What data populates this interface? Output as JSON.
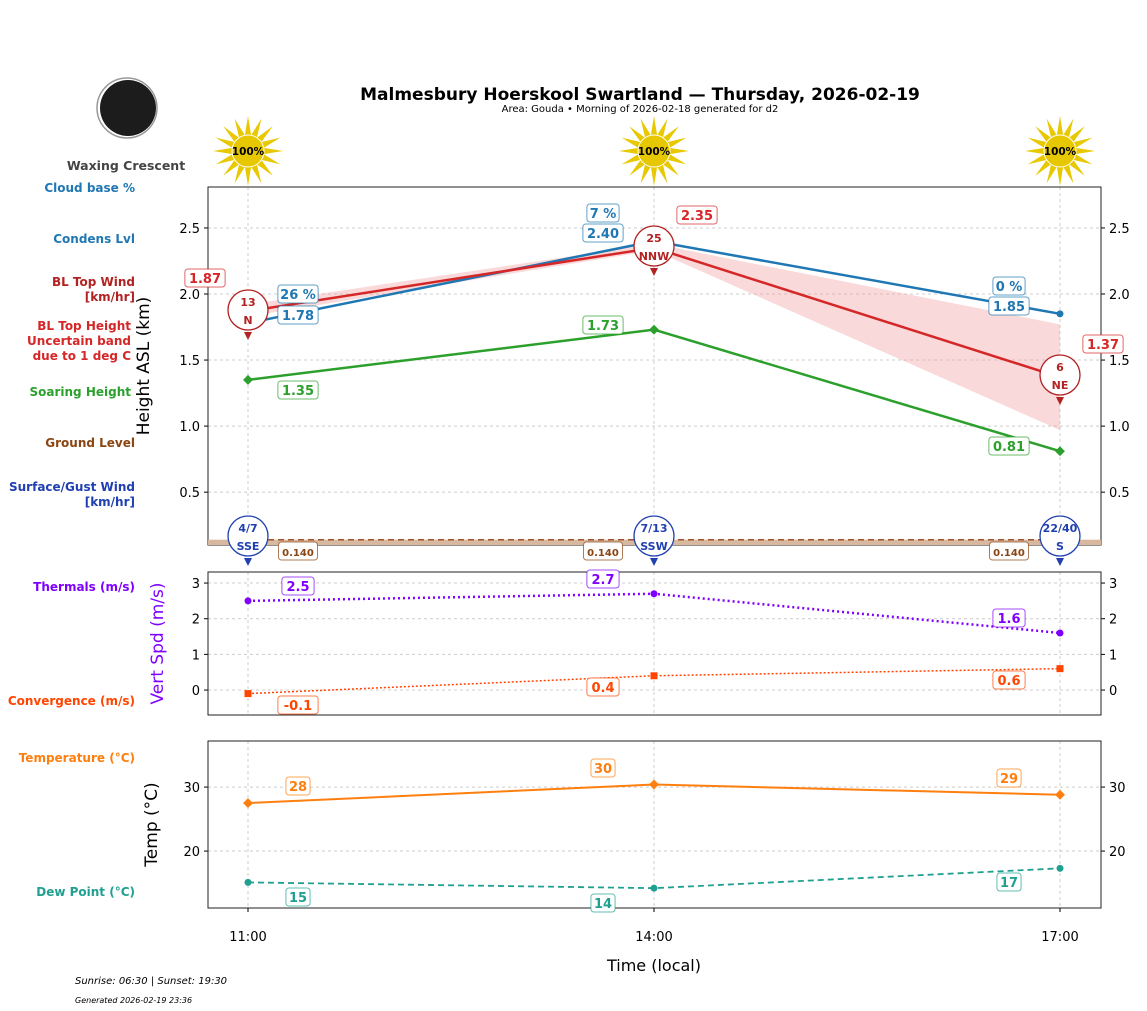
{
  "header": {
    "title": "Malmesbury Hoerskool Swartland — Thursday, 2026-02-19",
    "subtitle": "Area: Gouda • Morning of 2026-02-18 generated for d2",
    "moon_phase": "Waxing Crescent",
    "sun_labels": [
      "100%",
      "100%",
      "100%"
    ]
  },
  "legend": {
    "cloud_base": "Cloud base %",
    "condens": "Condens Lvl",
    "bl_wind": "BL Top Wind [km/hr]",
    "bl_height": "BL Top Height Uncertain band due to 1 deg C",
    "soaring": "Soaring Height",
    "ground": "Ground Level",
    "surface_wind": "Surface/Gust Wind [km/hr]",
    "thermals": "Thermals (m/s)",
    "convergence": "Convergence (m/s)",
    "temperature": "Temperature (°C)",
    "dew_point": "Dew Point (°C)"
  },
  "footer": {
    "sun": "Sunrise: 06:30 | Sunset: 19:30",
    "generated": "Generated 2026-02-19 23:36"
  },
  "colors": {
    "condens": "#1f77b4",
    "bl": "#d62728",
    "bl_wind": "#b22222",
    "soaring": "#2ca02c",
    "ground": "#8b4513",
    "surface_wind": "#2040b0",
    "thermals": "#8000ff",
    "convergence": "#ff4500",
    "temperature": "#ff7f0e",
    "dew": "#20a090"
  },
  "chart_data": [
    {
      "type": "line",
      "ylabel": "Height ASL (km)",
      "x": [
        "11:00",
        "14:00",
        "17:00"
      ],
      "ylim": [
        0.1,
        2.81
      ],
      "yticks": [
        "0.5",
        "1.0",
        "1.5",
        "2.0",
        "2.5"
      ],
      "series": [
        {
          "name": "Condens Lvl",
          "values": [
            1.78,
            2.4,
            1.85
          ],
          "labels": [
            "1.78",
            "2.40",
            "1.85"
          ]
        },
        {
          "name": "Cloud base %",
          "labels": [
            "26 %",
            "7 %",
            "0 %"
          ]
        },
        {
          "name": "BL Top Height",
          "values": [
            1.87,
            2.35,
            1.37
          ],
          "labels": [
            "1.87",
            "2.35",
            "1.37"
          ],
          "band_low": [
            1.83,
            2.33,
            0.97
          ],
          "band_high": [
            1.92,
            2.38,
            1.77
          ]
        },
        {
          "name": "Soaring Height",
          "values": [
            1.35,
            1.73,
            0.81
          ],
          "labels": [
            "1.35",
            "1.73",
            "0.81"
          ]
        },
        {
          "name": "Ground Level",
          "values": [
            0.14,
            0.14,
            0.14
          ],
          "labels": [
            "0.140",
            "0.140",
            "0.140"
          ]
        }
      ],
      "bl_wind": [
        {
          "speed": "13",
          "dir": "N"
        },
        {
          "speed": "25",
          "dir": "NNW"
        },
        {
          "speed": "6",
          "dir": "NE"
        }
      ],
      "surface_wind": [
        {
          "speed": "4/7",
          "dir": "SSE"
        },
        {
          "speed": "7/13",
          "dir": "SSW"
        },
        {
          "speed": "22/40",
          "dir": "S"
        }
      ]
    },
    {
      "type": "line",
      "ylabel": "Vert Spd (m/s)",
      "x": [
        "11:00",
        "14:00",
        "17:00"
      ],
      "ylim": [
        -0.7,
        3.31
      ],
      "yticks": [
        "0",
        "1",
        "2",
        "3"
      ],
      "series": [
        {
          "name": "Thermals (m/s)",
          "values": [
            2.5,
            2.7,
            1.6
          ],
          "labels": [
            "2.5",
            "2.7",
            "1.6"
          ]
        },
        {
          "name": "Convergence (m/s)",
          "values": [
            -0.1,
            0.4,
            0.6
          ],
          "labels": [
            "-0.1",
            "0.4",
            "0.6"
          ]
        }
      ]
    },
    {
      "type": "line",
      "ylabel": "Temp (°C)",
      "xlabel": "Time (local)",
      "x": [
        "11:00",
        "14:00",
        "17:00"
      ],
      "ylim": [
        11.1,
        37.2
      ],
      "yticks": [
        "20",
        "30"
      ],
      "series": [
        {
          "name": "Temperature (°C)",
          "values": [
            27.5,
            30.4,
            28.8
          ],
          "labels": [
            "28",
            "30",
            "29"
          ]
        },
        {
          "name": "Dew Point (°C)",
          "values": [
            15.1,
            14.2,
            17.3
          ],
          "labels": [
            "15",
            "14",
            "17"
          ]
        }
      ]
    }
  ]
}
